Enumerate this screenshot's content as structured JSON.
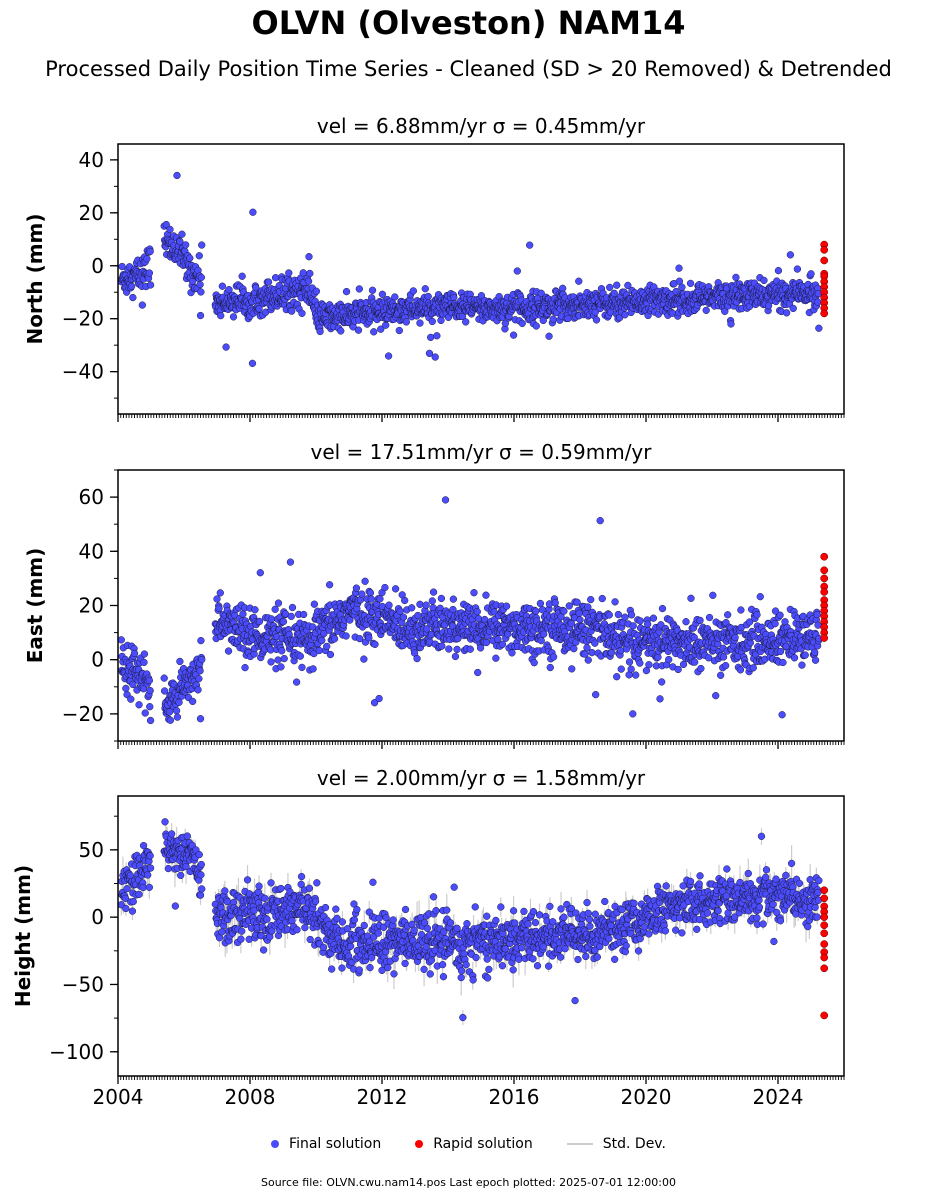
{
  "header": {
    "title": "OLVN (Olveston) NAM14",
    "subtitle": "Processed Daily Position Time Series - Cleaned (SD > 20 Removed) & Detrended"
  },
  "legend": {
    "final": "Final solution",
    "rapid": "Rapid solution",
    "std": "Std. Dev."
  },
  "footer": {
    "text": "Source file: OLVN.cwu.nam14.pos  Last epoch plotted: 2025-07-01 12:00:00"
  },
  "colors": {
    "final": "#4c4cff",
    "rapid": "#ff0000",
    "std": "#cccccc"
  },
  "chart_data": [
    {
      "type": "scatter",
      "title": "vel = 6.88mm/yr   σ = 0.45mm/yr",
      "ylabel": "North (mm)",
      "xlabel": "",
      "xlim": [
        2004.0,
        2026.0
      ],
      "ylim": [
        -56,
        46
      ],
      "yticks": [
        40,
        20,
        0,
        -20,
        -40
      ],
      "xticks": [
        2004,
        2008,
        2012,
        2016,
        2020,
        2024
      ],
      "grid": false,
      "series_trend": [
        {
          "x": 2004.1,
          "y": -5,
          "spread": 6
        },
        {
          "x": 2004.8,
          "y": -3,
          "spread": 7
        },
        {
          "x": 2005.4,
          "y": 10,
          "spread": 6
        },
        {
          "x": 2005.9,
          "y": 5,
          "spread": 6
        },
        {
          "x": 2006.2,
          "y": -2,
          "spread": 6
        },
        {
          "x": 2006.8,
          "y": -8,
          "spread": 6
        },
        {
          "x": 2007.0,
          "y": -14,
          "spread": 5
        },
        {
          "x": 2009.8,
          "y": -9,
          "spread": 6
        },
        {
          "x": 2010.0,
          "y": -20,
          "spread": 5
        },
        {
          "x": 2013.0,
          "y": -16,
          "spread": 5
        },
        {
          "x": 2016.0,
          "y": -16,
          "spread": 5
        },
        {
          "x": 2019.0,
          "y": -14,
          "spread": 5
        },
        {
          "x": 2022.0,
          "y": -12,
          "spread": 5
        },
        {
          "x": 2025.3,
          "y": -10,
          "spread": 5
        }
      ],
      "rapid": [
        8,
        6,
        2,
        -3,
        -4,
        -6,
        -8,
        -10,
        -12,
        -14,
        -16,
        -18
      ]
    },
    {
      "type": "scatter",
      "title": "vel = 17.51mm/yr   σ = 0.59mm/yr",
      "ylabel": "East (mm)",
      "xlabel": "",
      "xlim": [
        2004.0,
        2026.0
      ],
      "ylim": [
        -30,
        70
      ],
      "yticks": [
        60,
        40,
        20,
        0,
        -20
      ],
      "xticks": [
        2004,
        2008,
        2012,
        2016,
        2020,
        2024
      ],
      "grid": false,
      "series_trend": [
        {
          "x": 2004.1,
          "y": 0,
          "spread": 8
        },
        {
          "x": 2004.8,
          "y": -8,
          "spread": 8
        },
        {
          "x": 2005.4,
          "y": -18,
          "spread": 7
        },
        {
          "x": 2006.2,
          "y": -8,
          "spread": 7
        },
        {
          "x": 2006.8,
          "y": 8,
          "spread": 8
        },
        {
          "x": 2007.0,
          "y": 14,
          "spread": 8
        },
        {
          "x": 2008.5,
          "y": 8,
          "spread": 9
        },
        {
          "x": 2009.8,
          "y": 6,
          "spread": 9
        },
        {
          "x": 2011.0,
          "y": 18,
          "spread": 9
        },
        {
          "x": 2013.0,
          "y": 12,
          "spread": 9
        },
        {
          "x": 2016.0,
          "y": 12,
          "spread": 9
        },
        {
          "x": 2018.5,
          "y": 12,
          "spread": 9
        },
        {
          "x": 2019.0,
          "y": 7,
          "spread": 9
        },
        {
          "x": 2022.0,
          "y": 6,
          "spread": 9
        },
        {
          "x": 2025.3,
          "y": 8,
          "spread": 9
        }
      ],
      "rapid": [
        38,
        33,
        30,
        27,
        25,
        22,
        20,
        18,
        16,
        14,
        12,
        10,
        8
      ]
    },
    {
      "type": "scatter",
      "title": "vel = 2.00mm/yr   σ = 1.58mm/yr",
      "ylabel": "Height (mm)",
      "xlabel": "",
      "xlim": [
        2004.0,
        2026.0
      ],
      "ylim": [
        -118,
        90
      ],
      "yticks": [
        50,
        0,
        -50,
        -100
      ],
      "xticks": [
        2004,
        2008,
        2012,
        2016,
        2020,
        2024
      ],
      "grid": false,
      "series_trend": [
        {
          "x": 2004.1,
          "y": 20,
          "spread": 18
        },
        {
          "x": 2004.8,
          "y": 35,
          "spread": 15
        },
        {
          "x": 2005.4,
          "y": 55,
          "spread": 12
        },
        {
          "x": 2005.9,
          "y": 45,
          "spread": 13
        },
        {
          "x": 2006.2,
          "y": 50,
          "spread": 12
        },
        {
          "x": 2006.8,
          "y": 10,
          "spread": 20
        },
        {
          "x": 2007.0,
          "y": 0,
          "spread": 18
        },
        {
          "x": 2009.8,
          "y": 5,
          "spread": 18
        },
        {
          "x": 2010.5,
          "y": -18,
          "spread": 17
        },
        {
          "x": 2013.0,
          "y": -20,
          "spread": 18
        },
        {
          "x": 2016.0,
          "y": -18,
          "spread": 17
        },
        {
          "x": 2019.0,
          "y": -10,
          "spread": 17
        },
        {
          "x": 2021.0,
          "y": 10,
          "spread": 15
        },
        {
          "x": 2024.0,
          "y": 15,
          "spread": 15
        },
        {
          "x": 2025.3,
          "y": 12,
          "spread": 15
        }
      ],
      "rapid": [
        20,
        14,
        8,
        4,
        0,
        -6,
        -12,
        -20,
        -26,
        -30,
        -38,
        -73
      ]
    }
  ]
}
